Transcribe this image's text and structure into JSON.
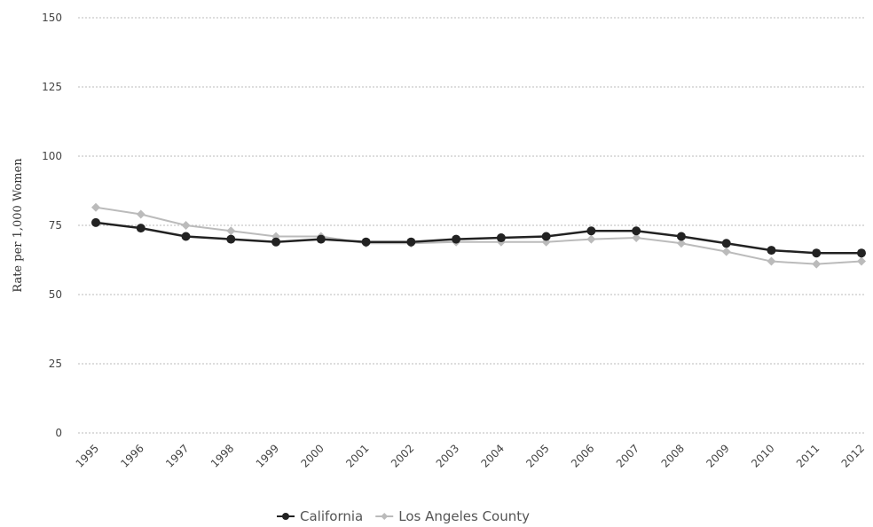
{
  "chart_data": {
    "type": "line",
    "y_label": "Rate per 1,000 Women",
    "categories": [
      "1995",
      "1996",
      "1997",
      "1998",
      "1999",
      "2000",
      "2001",
      "2002",
      "2003",
      "2004",
      "2005",
      "2006",
      "2007",
      "2008",
      "2009",
      "2010",
      "2011",
      "2012"
    ],
    "series": [
      {
        "name": "California",
        "color": "#222222",
        "values": [
          76,
          74,
          71,
          70,
          69,
          70,
          69,
          69,
          70,
          70.5,
          71,
          73,
          73,
          71,
          68.5,
          66,
          65,
          65
        ]
      },
      {
        "name": "Los Angeles County",
        "color": "#bbbbbb",
        "values": [
          81.5,
          79,
          75,
          73,
          71,
          71,
          68.5,
          68.5,
          69,
          69,
          69,
          70,
          70.5,
          68.5,
          65.5,
          62,
          61,
          62
        ]
      }
    ],
    "ylim": [
      0,
      150
    ],
    "yticks": [
      0,
      25,
      50,
      75,
      100,
      125,
      150
    ],
    "grid": true,
    "legend": "bottom"
  }
}
